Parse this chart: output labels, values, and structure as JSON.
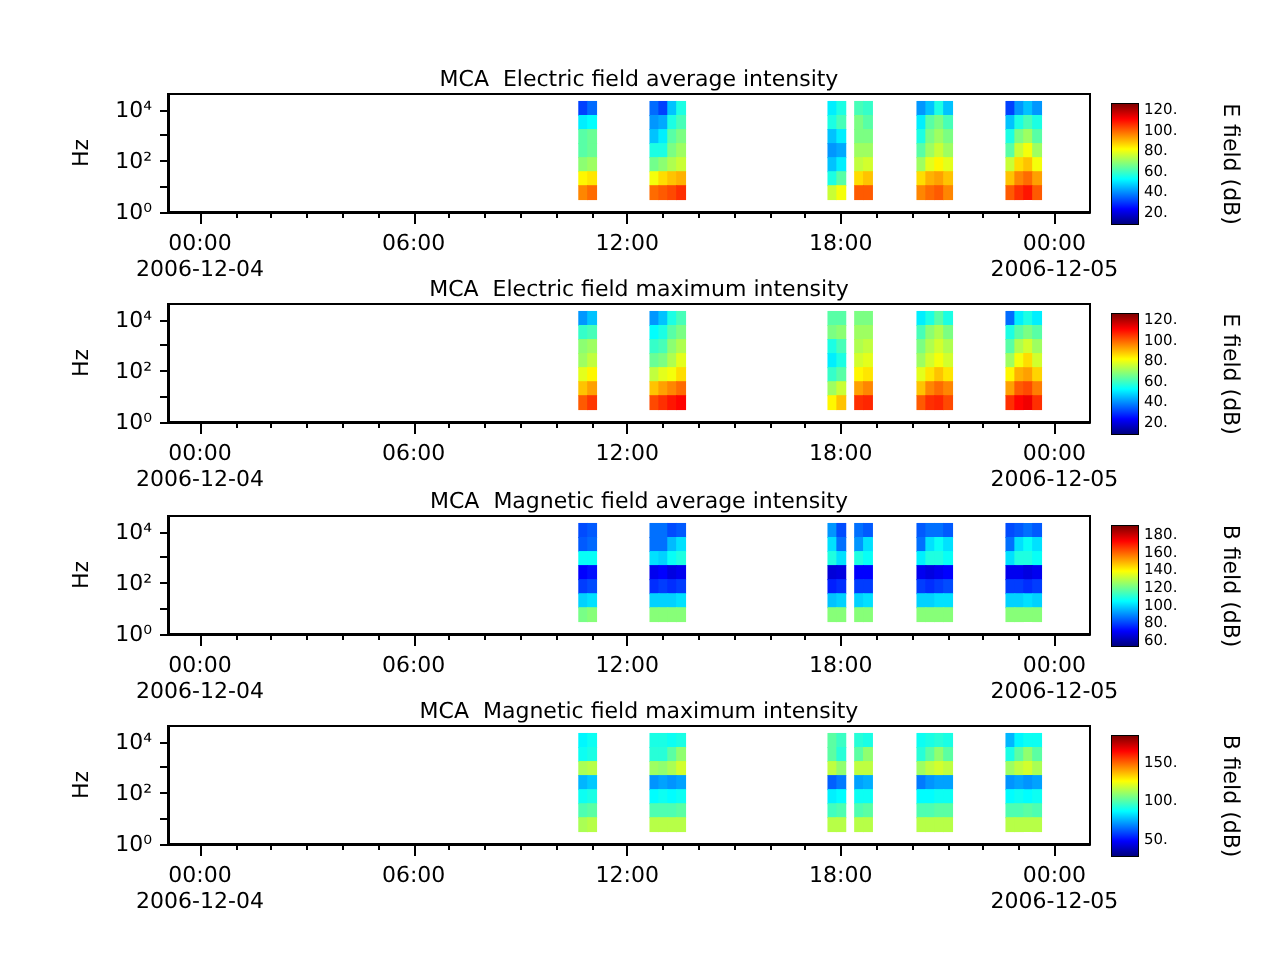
{
  "chart_data": [
    {
      "type": "heatmap",
      "title": "MCA  Electric field average intensity",
      "ylabel": "Hz",
      "clabel": "E field (dB)",
      "log": "y",
      "xlim": [
        -0.9,
        25.0
      ],
      "ylim": [
        1,
        42000
      ],
      "xticks": [
        {
          "value": 0,
          "label": "00:00\n2006-12-04"
        },
        {
          "value": 1,
          "label": null
        },
        {
          "value": 2,
          "label": null
        },
        {
          "value": 3,
          "label": null
        },
        {
          "value": 4,
          "label": null
        },
        {
          "value": 5,
          "label": null
        },
        {
          "value": 6,
          "label": "06:00"
        },
        {
          "value": 7,
          "label": null
        },
        {
          "value": 8,
          "label": null
        },
        {
          "value": 9,
          "label": null
        },
        {
          "value": 10,
          "label": null
        },
        {
          "value": 11,
          "label": null
        },
        {
          "value": 12,
          "label": "12:00"
        },
        {
          "value": 13,
          "label": null
        },
        {
          "value": 14,
          "label": null
        },
        {
          "value": 15,
          "label": null
        },
        {
          "value": 16,
          "label": null
        },
        {
          "value": 17,
          "label": null
        },
        {
          "value": 18,
          "label": "18:00"
        },
        {
          "value": 19,
          "label": null
        },
        {
          "value": 20,
          "label": null
        },
        {
          "value": 21,
          "label": null
        },
        {
          "value": 22,
          "label": null
        },
        {
          "value": 23,
          "label": null
        },
        {
          "value": 24,
          "label": "00:00\n2006-12-05"
        }
      ],
      "yticks": [
        {
          "value": 1,
          "label": "10⁰"
        },
        {
          "value": 10,
          "label": null
        },
        {
          "value": 100,
          "label": "10²"
        },
        {
          "value": 1000,
          "label": null
        },
        {
          "value": 10000,
          "label": "10⁴"
        }
      ],
      "x": [
        10.75,
        11.0,
        11.25,
        11.5,
        11.75,
        12.0,
        12.25,
        12.5,
        12.75,
        13.0,
        13.25,
        13.5,
        13.75,
        14.0,
        14.25,
        14.5,
        14.75,
        15.0,
        15.25,
        15.5,
        15.75,
        16.0,
        16.25,
        16.5,
        16.75,
        17.0,
        17.25,
        17.5,
        17.75,
        18.0,
        18.25,
        18.5,
        18.75,
        19.0,
        19.25,
        19.5,
        19.75,
        20.0,
        20.25,
        20.5,
        20.75,
        21.0,
        21.25,
        21.5,
        21.75,
        22.0,
        22.25,
        22.5,
        22.75,
        23.0,
        23.25,
        23.5
      ],
      "y": [
        11900,
        3350,
        944,
        266,
        75,
        21,
        6
      ],
      "cells": [
        [
          30,
          35,
          null,
          null,
          null,
          null,
          null,
          null,
          35,
          30,
          45,
          55,
          null,
          null,
          null,
          null,
          null,
          null,
          null,
          null,
          null,
          null,
          null,
          null,
          null,
          null,
          null,
          null,
          50,
          55,
          null,
          60,
          58,
          null,
          null,
          null,
          null,
          null,
          40,
          45,
          55,
          45,
          null,
          null,
          null,
          null,
          null,
          null,
          30,
          40,
          45,
          40
        ],
        [
          50,
          52,
          null,
          null,
          null,
          null,
          null,
          null,
          40,
          42,
          55,
          60,
          null,
          null,
          null,
          null,
          null,
          null,
          null,
          null,
          null,
          null,
          null,
          null,
          null,
          null,
          null,
          null,
          55,
          60,
          null,
          66,
          62,
          null,
          null,
          null,
          null,
          null,
          50,
          62,
          66,
          60,
          null,
          null,
          null,
          null,
          null,
          null,
          45,
          55,
          60,
          55
        ],
        [
          62,
          64,
          null,
          null,
          null,
          null,
          null,
          null,
          45,
          50,
          62,
          66,
          null,
          null,
          null,
          null,
          null,
          null,
          null,
          null,
          null,
          null,
          null,
          null,
          null,
          null,
          null,
          null,
          45,
          50,
          null,
          66,
          66,
          null,
          null,
          null,
          null,
          null,
          55,
          66,
          70,
          66,
          null,
          null,
          null,
          null,
          null,
          null,
          55,
          66,
          70,
          62
        ],
        [
          62,
          64,
          null,
          null,
          null,
          null,
          null,
          null,
          55,
          55,
          66,
          70,
          null,
          null,
          null,
          null,
          null,
          null,
          null,
          null,
          null,
          null,
          null,
          null,
          null,
          null,
          null,
          null,
          40,
          42,
          null,
          70,
          70,
          null,
          null,
          null,
          null,
          null,
          62,
          70,
          75,
          70,
          null,
          null,
          null,
          null,
          null,
          null,
          62,
          75,
          80,
          70
        ],
        [
          68,
          70,
          null,
          null,
          null,
          null,
          null,
          null,
          65,
          68,
          72,
          75,
          null,
          null,
          null,
          null,
          null,
          null,
          null,
          null,
          null,
          null,
          null,
          null,
          null,
          null,
          null,
          null,
          45,
          50,
          null,
          74,
          76,
          null,
          null,
          null,
          null,
          null,
          70,
          78,
          82,
          78,
          null,
          null,
          null,
          null,
          null,
          null,
          75,
          85,
          88,
          80
        ],
        [
          82,
          84,
          null,
          null,
          null,
          null,
          null,
          null,
          80,
          85,
          88,
          90,
          null,
          null,
          null,
          null,
          null,
          null,
          null,
          null,
          null,
          null,
          null,
          null,
          null,
          null,
          null,
          null,
          55,
          62,
          null,
          85,
          88,
          null,
          null,
          null,
          null,
          null,
          85,
          90,
          92,
          88,
          null,
          null,
          null,
          null,
          null,
          null,
          88,
          95,
          98,
          92
        ],
        [
          95,
          98,
          null,
          null,
          null,
          null,
          null,
          null,
          98,
          100,
          102,
          105,
          null,
          null,
          null,
          null,
          null,
          null,
          null,
          null,
          null,
          null,
          null,
          null,
          null,
          null,
          null,
          null,
          75,
          80,
          null,
          100,
          100,
          null,
          null,
          null,
          null,
          null,
          95,
          98,
          100,
          95,
          null,
          null,
          null,
          null,
          null,
          null,
          100,
          105,
          108,
          100
        ]
      ],
      "clim": [
        8,
        125
      ],
      "cticks": [
        {
          "value": 20,
          "label": "20."
        },
        {
          "value": 40,
          "label": "40."
        },
        {
          "value": 60,
          "label": "60."
        },
        {
          "value": 80,
          "label": "80."
        },
        {
          "value": 100,
          "label": "100."
        },
        {
          "value": 120,
          "label": "120."
        }
      ]
    },
    {
      "type": "heatmap",
      "title": "MCA  Electric field maximum intensity",
      "ylabel": "Hz",
      "clabel": "E field (dB)",
      "log": "y",
      "xlim": [
        -0.9,
        25.0
      ],
      "ylim": [
        1,
        42000
      ],
      "xticks": [
        {
          "value": 0,
          "label": "00:00\n2006-12-04"
        },
        {
          "value": 1,
          "label": null
        },
        {
          "value": 2,
          "label": null
        },
        {
          "value": 3,
          "label": null
        },
        {
          "value": 4,
          "label": null
        },
        {
          "value": 5,
          "label": null
        },
        {
          "value": 6,
          "label": "06:00"
        },
        {
          "value": 7,
          "label": null
        },
        {
          "value": 8,
          "label": null
        },
        {
          "value": 9,
          "label": null
        },
        {
          "value": 10,
          "label": null
        },
        {
          "value": 11,
          "label": null
        },
        {
          "value": 12,
          "label": "12:00"
        },
        {
          "value": 13,
          "label": null
        },
        {
          "value": 14,
          "label": null
        },
        {
          "value": 15,
          "label": null
        },
        {
          "value": 16,
          "label": null
        },
        {
          "value": 17,
          "label": null
        },
        {
          "value": 18,
          "label": "18:00"
        },
        {
          "value": 19,
          "label": null
        },
        {
          "value": 20,
          "label": null
        },
        {
          "value": 21,
          "label": null
        },
        {
          "value": 22,
          "label": null
        },
        {
          "value": 23,
          "label": null
        },
        {
          "value": 24,
          "label": "00:00\n2006-12-05"
        }
      ],
      "yticks": [
        {
          "value": 1,
          "label": "10⁰"
        },
        {
          "value": 10,
          "label": null
        },
        {
          "value": 100,
          "label": "10²"
        },
        {
          "value": 1000,
          "label": null
        },
        {
          "value": 10000,
          "label": "10⁴"
        }
      ],
      "x": [
        10.75,
        11.0,
        11.25,
        11.5,
        11.75,
        12.0,
        12.25,
        12.5,
        12.75,
        13.0,
        13.25,
        13.5,
        13.75,
        14.0,
        14.25,
        14.5,
        14.75,
        15.0,
        15.25,
        15.5,
        15.75,
        16.0,
        16.25,
        16.5,
        16.75,
        17.0,
        17.25,
        17.5,
        17.75,
        18.0,
        18.25,
        18.5,
        18.75,
        19.0,
        19.25,
        19.5,
        19.75,
        20.0,
        20.25,
        20.5,
        20.75,
        21.0,
        21.25,
        21.5,
        21.75,
        22.0,
        22.25,
        22.5,
        22.75,
        23.0,
        23.25,
        23.5
      ],
      "y": [
        11900,
        3350,
        944,
        266,
        75,
        21,
        6
      ],
      "cells": [
        [
          40,
          45,
          null,
          null,
          null,
          null,
          null,
          null,
          40,
          45,
          55,
          60,
          null,
          null,
          null,
          null,
          null,
          null,
          null,
          null,
          null,
          null,
          null,
          null,
          null,
          null,
          null,
          null,
          62,
          62,
          null,
          66,
          66,
          null,
          null,
          null,
          null,
          null,
          50,
          55,
          62,
          55,
          null,
          null,
          null,
          null,
          null,
          null,
          35,
          50,
          55,
          50
        ],
        [
          58,
          60,
          null,
          null,
          null,
          null,
          null,
          null,
          52,
          55,
          62,
          66,
          null,
          null,
          null,
          null,
          null,
          null,
          null,
          null,
          null,
          null,
          null,
          null,
          null,
          null,
          null,
          null,
          66,
          68,
          null,
          70,
          70,
          null,
          null,
          null,
          null,
          null,
          60,
          68,
          72,
          66,
          null,
          null,
          null,
          null,
          null,
          null,
          55,
          62,
          66,
          62
        ],
        [
          68,
          70,
          null,
          null,
          null,
          null,
          null,
          null,
          58,
          60,
          68,
          72,
          null,
          null,
          null,
          null,
          null,
          null,
          null,
          null,
          null,
          null,
          null,
          null,
          null,
          null,
          null,
          null,
          55,
          60,
          null,
          72,
          74,
          null,
          null,
          null,
          null,
          null,
          66,
          72,
          76,
          72,
          null,
          null,
          null,
          null,
          null,
          null,
          62,
          72,
          76,
          70
        ],
        [
          70,
          74,
          null,
          null,
          null,
          null,
          null,
          null,
          64,
          66,
          72,
          78,
          null,
          null,
          null,
          null,
          null,
          null,
          null,
          null,
          null,
          null,
          null,
          null,
          null,
          null,
          null,
          null,
          50,
          55,
          null,
          76,
          78,
          null,
          null,
          null,
          null,
          null,
          70,
          76,
          80,
          76,
          null,
          null,
          null,
          null,
          null,
          null,
          70,
          80,
          85,
          76
        ],
        [
          78,
          82,
          null,
          null,
          null,
          null,
          null,
          null,
          74,
          78,
          80,
          85,
          null,
          null,
          null,
          null,
          null,
          null,
          null,
          null,
          null,
          null,
          null,
          null,
          null,
          null,
          null,
          null,
          58,
          62,
          null,
          82,
          84,
          null,
          null,
          null,
          null,
          null,
          78,
          84,
          88,
          84,
          null,
          null,
          null,
          null,
          null,
          null,
          82,
          90,
          92,
          86
        ],
        [
          88,
          92,
          null,
          null,
          null,
          null,
          null,
          null,
          88,
          92,
          95,
          98,
          null,
          null,
          null,
          null,
          null,
          null,
          null,
          null,
          null,
          null,
          null,
          null,
          null,
          null,
          null,
          null,
          70,
          75,
          null,
          92,
          95,
          null,
          null,
          null,
          null,
          null,
          88,
          95,
          98,
          95,
          null,
          null,
          null,
          null,
          null,
          null,
          92,
          100,
          102,
          96
        ],
        [
          100,
          104,
          null,
          null,
          null,
          null,
          null,
          null,
          102,
          105,
          108,
          110,
          null,
          null,
          null,
          null,
          null,
          null,
          null,
          null,
          null,
          null,
          null,
          null,
          null,
          null,
          null,
          null,
          82,
          88,
          null,
          105,
          106,
          null,
          null,
          null,
          null,
          null,
          100,
          105,
          106,
          102,
          null,
          null,
          null,
          null,
          null,
          null,
          105,
          110,
          112,
          105
        ]
      ],
      "clim": [
        8,
        125
      ],
      "cticks": [
        {
          "value": 20,
          "label": "20."
        },
        {
          "value": 40,
          "label": "40."
        },
        {
          "value": 60,
          "label": "60."
        },
        {
          "value": 80,
          "label": "80."
        },
        {
          "value": 100,
          "label": "100."
        },
        {
          "value": 120,
          "label": "120."
        }
      ]
    },
    {
      "type": "heatmap",
      "title": "MCA  Magnetic field average intensity",
      "ylabel": "Hz",
      "clabel": "B field (dB)",
      "log": "y",
      "xlim": [
        -0.9,
        25.0
      ],
      "ylim": [
        1,
        42000
      ],
      "xticks": [
        {
          "value": 0,
          "label": "00:00\n2006-12-04"
        },
        {
          "value": 1,
          "label": null
        },
        {
          "value": 2,
          "label": null
        },
        {
          "value": 3,
          "label": null
        },
        {
          "value": 4,
          "label": null
        },
        {
          "value": 5,
          "label": null
        },
        {
          "value": 6,
          "label": "06:00"
        },
        {
          "value": 7,
          "label": null
        },
        {
          "value": 8,
          "label": null
        },
        {
          "value": 9,
          "label": null
        },
        {
          "value": 10,
          "label": null
        },
        {
          "value": 11,
          "label": null
        },
        {
          "value": 12,
          "label": "12:00"
        },
        {
          "value": 13,
          "label": null
        },
        {
          "value": 14,
          "label": null
        },
        {
          "value": 15,
          "label": null
        },
        {
          "value": 16,
          "label": null
        },
        {
          "value": 17,
          "label": null
        },
        {
          "value": 18,
          "label": "18:00"
        },
        {
          "value": 19,
          "label": null
        },
        {
          "value": 20,
          "label": null
        },
        {
          "value": 21,
          "label": null
        },
        {
          "value": 22,
          "label": null
        },
        {
          "value": 23,
          "label": null
        },
        {
          "value": 24,
          "label": "00:00\n2006-12-05"
        }
      ],
      "yticks": [
        {
          "value": 1,
          "label": "10⁰"
        },
        {
          "value": 10,
          "label": null
        },
        {
          "value": 100,
          "label": "10²"
        },
        {
          "value": 1000,
          "label": null
        },
        {
          "value": 10000,
          "label": "10⁴"
        }
      ],
      "x": [
        10.75,
        11.0,
        11.25,
        11.5,
        11.75,
        12.0,
        12.25,
        12.5,
        12.75,
        13.0,
        13.25,
        13.5,
        13.75,
        14.0,
        14.25,
        14.5,
        14.75,
        15.0,
        15.25,
        15.5,
        15.75,
        16.0,
        16.25,
        16.5,
        16.75,
        17.0,
        17.25,
        17.5,
        17.75,
        18.0,
        18.25,
        18.5,
        18.75,
        19.0,
        19.25,
        19.5,
        19.75,
        20.0,
        20.25,
        20.5,
        20.75,
        21.0,
        21.25,
        21.5,
        21.75,
        22.0,
        22.25,
        22.5,
        22.75,
        23.0,
        23.25,
        23.5
      ],
      "y": [
        11900,
        3350,
        944,
        266,
        75,
        21,
        6
      ],
      "cells": [
        [
          80,
          82,
          null,
          null,
          null,
          null,
          null,
          null,
          85,
          85,
          80,
          82,
          null,
          null,
          null,
          null,
          null,
          null,
          null,
          null,
          null,
          null,
          null,
          null,
          null,
          null,
          null,
          null,
          90,
          80,
          null,
          85,
          82,
          null,
          null,
          null,
          null,
          null,
          82,
          85,
          85,
          82,
          null,
          null,
          null,
          null,
          null,
          null,
          80,
          82,
          85,
          82
        ],
        [
          82,
          84,
          null,
          null,
          null,
          null,
          null,
          null,
          85,
          85,
          95,
          100,
          null,
          null,
          null,
          null,
          null,
          null,
          null,
          null,
          null,
          null,
          null,
          null,
          null,
          null,
          null,
          null,
          100,
          85,
          null,
          90,
          100,
          null,
          null,
          null,
          null,
          null,
          85,
          100,
          105,
          100,
          null,
          null,
          null,
          null,
          null,
          null,
          85,
          100,
          105,
          100
        ],
        [
          105,
          105,
          null,
          null,
          null,
          null,
          null,
          null,
          100,
          98,
          105,
          108,
          null,
          null,
          null,
          null,
          null,
          null,
          null,
          null,
          null,
          null,
          null,
          null,
          null,
          null,
          null,
          null,
          108,
          100,
          null,
          108,
          105,
          null,
          null,
          null,
          null,
          null,
          102,
          108,
          108,
          105,
          null,
          null,
          null,
          null,
          null,
          null,
          100,
          108,
          108,
          105
        ],
        [
          70,
          72,
          null,
          null,
          null,
          null,
          null,
          null,
          68,
          70,
          66,
          68,
          null,
          null,
          null,
          null,
          null,
          null,
          null,
          null,
          null,
          null,
          null,
          null,
          null,
          null,
          null,
          null,
          65,
          66,
          null,
          70,
          70,
          null,
          null,
          null,
          null,
          null,
          68,
          66,
          68,
          70,
          null,
          null,
          null,
          null,
          null,
          null,
          68,
          68,
          66,
          68
        ],
        [
          78,
          80,
          null,
          null,
          null,
          null,
          null,
          null,
          76,
          78,
          76,
          78,
          null,
          null,
          null,
          null,
          null,
          null,
          null,
          null,
          null,
          null,
          null,
          null,
          null,
          null,
          null,
          null,
          74,
          76,
          null,
          78,
          78,
          null,
          null,
          null,
          null,
          null,
          78,
          76,
          78,
          80,
          null,
          null,
          null,
          null,
          null,
          null,
          78,
          78,
          76,
          78
        ],
        [
          98,
          100,
          null,
          null,
          null,
          null,
          null,
          null,
          98,
          98,
          98,
          100,
          null,
          null,
          null,
          null,
          null,
          null,
          null,
          null,
          null,
          null,
          null,
          null,
          null,
          null,
          null,
          null,
          96,
          98,
          null,
          98,
          100,
          null,
          null,
          null,
          null,
          null,
          98,
          98,
          100,
          100,
          null,
          null,
          null,
          null,
          null,
          null,
          98,
          98,
          100,
          98
        ],
        [
          120,
          122,
          null,
          null,
          null,
          null,
          null,
          null,
          122,
          122,
          122,
          122,
          null,
          null,
          null,
          null,
          null,
          null,
          null,
          null,
          null,
          null,
          null,
          null,
          null,
          null,
          null,
          null,
          122,
          122,
          null,
          122,
          122,
          null,
          null,
          null,
          null,
          null,
          122,
          122,
          122,
          122,
          null,
          null,
          null,
          null,
          null,
          null,
          122,
          122,
          122,
          122
        ]
      ],
      "clim": [
        53,
        189
      ],
      "cticks": [
        {
          "value": 60,
          "label": "60."
        },
        {
          "value": 80,
          "label": "80."
        },
        {
          "value": 100,
          "label": "100."
        },
        {
          "value": 120,
          "label": "120."
        },
        {
          "value": 140,
          "label": "140."
        },
        {
          "value": 160,
          "label": "160."
        },
        {
          "value": 180,
          "label": "180."
        }
      ]
    },
    {
      "type": "heatmap",
      "title": "MCA  Magnetic field maximum intensity",
      "ylabel": "Hz",
      "clabel": "B field (dB)",
      "log": "y",
      "xlim": [
        -0.9,
        25.0
      ],
      "ylim": [
        1,
        42000
      ],
      "xticks": [
        {
          "value": 0,
          "label": "00:00\n2006-12-04"
        },
        {
          "value": 1,
          "label": null
        },
        {
          "value": 2,
          "label": null
        },
        {
          "value": 3,
          "label": null
        },
        {
          "value": 4,
          "label": null
        },
        {
          "value": 5,
          "label": null
        },
        {
          "value": 6,
          "label": "06:00"
        },
        {
          "value": 7,
          "label": null
        },
        {
          "value": 8,
          "label": null
        },
        {
          "value": 9,
          "label": null
        },
        {
          "value": 10,
          "label": null
        },
        {
          "value": 11,
          "label": null
        },
        {
          "value": 12,
          "label": "12:00"
        },
        {
          "value": 13,
          "label": null
        },
        {
          "value": 14,
          "label": null
        },
        {
          "value": 15,
          "label": null
        },
        {
          "value": 16,
          "label": null
        },
        {
          "value": 17,
          "label": null
        },
        {
          "value": 18,
          "label": "18:00"
        },
        {
          "value": 19,
          "label": null
        },
        {
          "value": 20,
          "label": null
        },
        {
          "value": 21,
          "label": null
        },
        {
          "value": 22,
          "label": null
        },
        {
          "value": 23,
          "label": null
        },
        {
          "value": 24,
          "label": "00:00\n2006-12-05"
        }
      ],
      "yticks": [
        {
          "value": 1,
          "label": "10⁰"
        },
        {
          "value": 10,
          "label": null
        },
        {
          "value": 100,
          "label": "10²"
        },
        {
          "value": 1000,
          "label": null
        },
        {
          "value": 10000,
          "label": "10⁴"
        }
      ],
      "x": [
        10.75,
        11.0,
        11.25,
        11.5,
        11.75,
        12.0,
        12.25,
        12.5,
        12.75,
        13.0,
        13.25,
        13.5,
        13.75,
        14.0,
        14.25,
        14.5,
        14.75,
        15.0,
        15.25,
        15.5,
        15.75,
        16.0,
        16.25,
        16.5,
        16.75,
        17.0,
        17.25,
        17.5,
        17.75,
        18.0,
        18.25,
        18.5,
        18.75,
        19.0,
        19.25,
        19.5,
        19.75,
        20.0,
        20.25,
        20.5,
        20.75,
        21.0,
        21.25,
        21.5,
        21.75,
        22.0,
        22.25,
        22.5,
        22.75,
        23.0,
        23.25,
        23.5
      ],
      "y": [
        11900,
        3350,
        944,
        266,
        75,
        21,
        6
      ],
      "cells": [
        [
          85,
          88,
          null,
          null,
          null,
          null,
          null,
          null,
          90,
          90,
          88,
          90,
          null,
          null,
          null,
          null,
          null,
          null,
          null,
          null,
          null,
          null,
          null,
          null,
          null,
          null,
          null,
          null,
          100,
          95,
          null,
          92,
          90,
          null,
          null,
          null,
          null,
          null,
          88,
          90,
          92,
          90,
          null,
          null,
          null,
          null,
          null,
          null,
          75,
          85,
          88,
          88
        ],
        [
          88,
          90,
          null,
          null,
          null,
          null,
          null,
          null,
          92,
          92,
          100,
          108,
          null,
          null,
          null,
          null,
          null,
          null,
          null,
          null,
          null,
          null,
          null,
          null,
          null,
          null,
          null,
          null,
          100,
          92,
          null,
          100,
          108,
          null,
          null,
          null,
          null,
          null,
          92,
          100,
          108,
          100,
          null,
          null,
          null,
          null,
          null,
          null,
          90,
          100,
          108,
          100
        ],
        [
          112,
          114,
          null,
          null,
          null,
          null,
          null,
          null,
          110,
          108,
          112,
          118,
          null,
          null,
          null,
          null,
          null,
          null,
          null,
          null,
          null,
          null,
          null,
          null,
          null,
          null,
          null,
          null,
          115,
          108,
          null,
          115,
          115,
          null,
          null,
          null,
          null,
          null,
          110,
          115,
          118,
          115,
          null,
          null,
          null,
          null,
          null,
          null,
          110,
          115,
          118,
          112
        ],
        [
          75,
          78,
          null,
          null,
          null,
          null,
          null,
          null,
          70,
          72,
          70,
          72,
          null,
          null,
          null,
          null,
          null,
          null,
          null,
          null,
          null,
          null,
          null,
          null,
          null,
          null,
          null,
          null,
          62,
          66,
          null,
          72,
          74,
          null,
          null,
          null,
          null,
          null,
          66,
          70,
          72,
          72,
          null,
          null,
          null,
          null,
          null,
          null,
          70,
          72,
          70,
          72
        ],
        [
          88,
          90,
          null,
          null,
          null,
          null,
          null,
          null,
          86,
          88,
          86,
          88,
          null,
          null,
          null,
          null,
          null,
          null,
          null,
          null,
          null,
          null,
          null,
          null,
          null,
          null,
          null,
          null,
          84,
          86,
          null,
          88,
          88,
          null,
          null,
          null,
          null,
          null,
          86,
          86,
          88,
          88,
          null,
          null,
          null,
          null,
          null,
          null,
          86,
          88,
          86,
          88
        ],
        [
          98,
          100,
          null,
          null,
          null,
          null,
          null,
          null,
          98,
          98,
          98,
          100,
          null,
          null,
          null,
          null,
          null,
          null,
          null,
          null,
          null,
          null,
          null,
          null,
          null,
          null,
          null,
          null,
          96,
          98,
          null,
          98,
          100,
          null,
          null,
          null,
          null,
          null,
          98,
          98,
          100,
          100,
          null,
          null,
          null,
          null,
          null,
          null,
          98,
          98,
          100,
          98
        ],
        [
          112,
          114,
          null,
          null,
          null,
          null,
          null,
          null,
          114,
          114,
          114,
          114,
          null,
          null,
          null,
          null,
          null,
          null,
          null,
          null,
          null,
          null,
          null,
          null,
          null,
          null,
          null,
          null,
          114,
          114,
          null,
          114,
          114,
          null,
          null,
          null,
          null,
          null,
          114,
          114,
          114,
          114,
          null,
          null,
          null,
          null,
          null,
          null,
          114,
          114,
          114,
          114
        ]
      ],
      "clim": [
        28,
        183
      ],
      "cticks": [
        {
          "value": 30,
          "label": null
        },
        {
          "value": 40,
          "label": null
        },
        {
          "value": 50,
          "label": "50."
        },
        {
          "value": 60,
          "label": null
        },
        {
          "value": 70,
          "label": null
        },
        {
          "value": 80,
          "label": null
        },
        {
          "value": 90,
          "label": null
        },
        {
          "value": 100,
          "label": "100."
        },
        {
          "value": 110,
          "label": null
        },
        {
          "value": 120,
          "label": null
        },
        {
          "value": 130,
          "label": null
        },
        {
          "value": 140,
          "label": null
        },
        {
          "value": 150,
          "label": "150."
        },
        {
          "value": 160,
          "label": null
        },
        {
          "value": 170,
          "label": null
        },
        {
          "value": 180,
          "label": null
        }
      ]
    }
  ]
}
